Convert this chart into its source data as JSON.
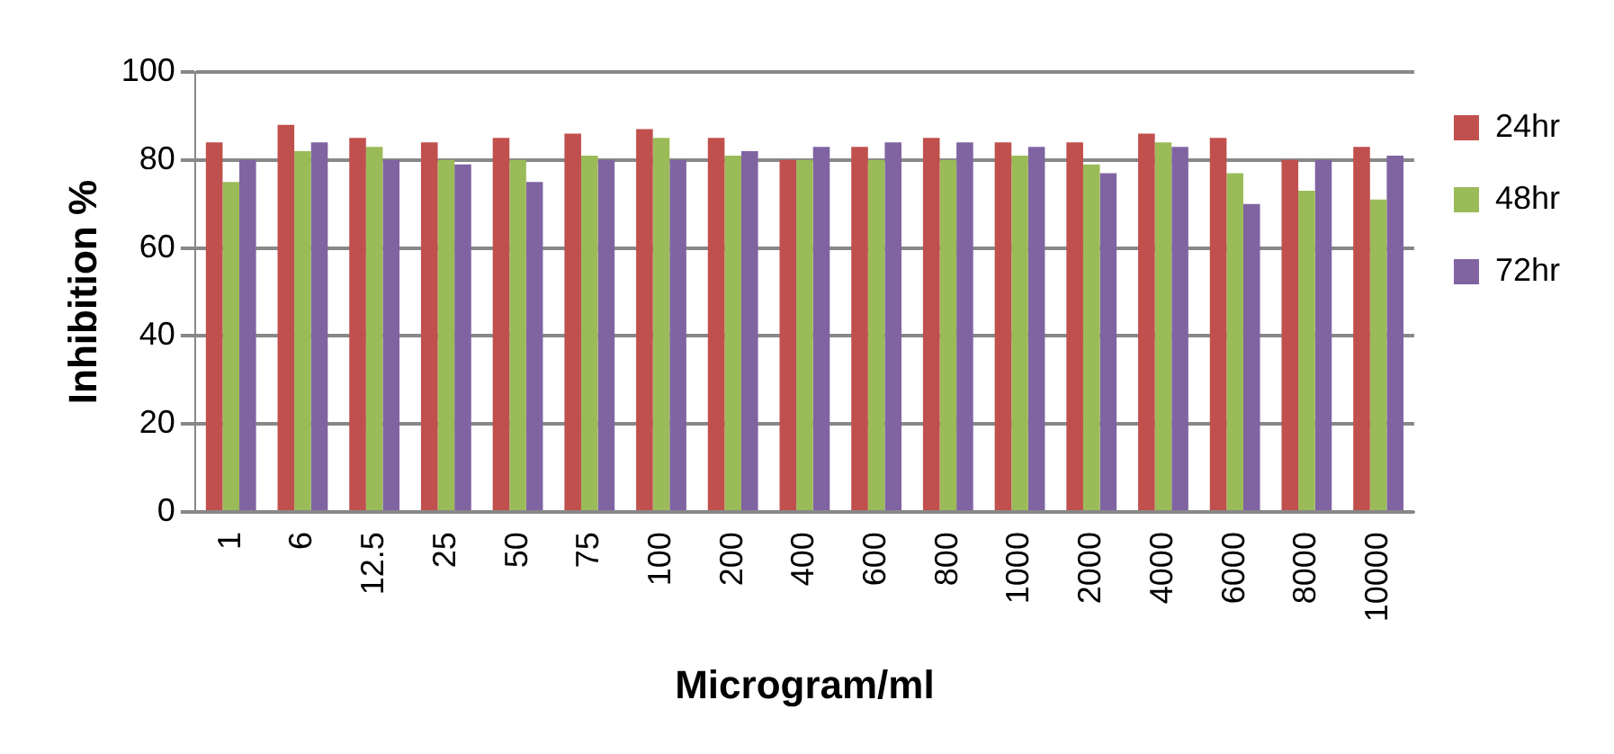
{
  "chart_data": {
    "type": "bar",
    "xlabel": "Microgram/ml",
    "ylabel": "Inhibition %",
    "categories": [
      "1",
      "6",
      "12.5",
      "25",
      "50",
      "75",
      "100",
      "200",
      "400",
      "600",
      "800",
      "1000",
      "2000",
      "4000",
      "6000",
      "8000",
      "10000"
    ],
    "series": [
      {
        "name": "24hr",
        "color": "#c0504d",
        "values": [
          84,
          88,
          85,
          84,
          85,
          86,
          87,
          85,
          80,
          83,
          85,
          84,
          84,
          86,
          85,
          80,
          83
        ]
      },
      {
        "name": "48hr",
        "color": "#9bbb59",
        "values": [
          75,
          82,
          83,
          80,
          80,
          81,
          85,
          81,
          80,
          80,
          80,
          81,
          79,
          84,
          77,
          73,
          71
        ]
      },
      {
        "name": "72hr",
        "color": "#8064a2",
        "values": [
          80,
          84,
          80,
          79,
          75,
          80,
          80,
          82,
          83,
          84,
          84,
          83,
          77,
          83,
          70,
          80,
          81
        ]
      }
    ],
    "ylim": [
      0,
      100
    ],
    "yticks": [
      0,
      20,
      40,
      60,
      80,
      100
    ],
    "grid": "y",
    "legend": "right"
  }
}
